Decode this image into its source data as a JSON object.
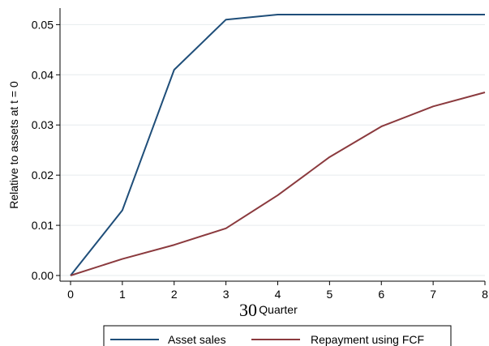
{
  "page_number": "30",
  "chart_data": {
    "type": "line",
    "xlabel": "Quarter",
    "ylabel": "Relative to assets at t = 0",
    "x": [
      0,
      1,
      2,
      3,
      4,
      5,
      6,
      7,
      8
    ],
    "xlim": [
      0,
      8
    ],
    "ylim": [
      0,
      0.052
    ],
    "x_ticks": [
      "0",
      "1",
      "2",
      "3",
      "4",
      "5",
      "6",
      "7",
      "8"
    ],
    "y_ticks": [
      {
        "value": 0.0,
        "label": "0.00"
      },
      {
        "value": 0.01,
        "label": "0.01"
      },
      {
        "value": 0.02,
        "label": "0.02"
      },
      {
        "value": 0.03,
        "label": "0.03"
      },
      {
        "value": 0.04,
        "label": "0.04"
      },
      {
        "value": 0.05,
        "label": "0.05"
      }
    ],
    "grid": "horizontal",
    "legend_position": "bottom",
    "series": [
      {
        "name": "Asset sales",
        "color": "#1f4e79",
        "values": [
          0.0,
          0.013,
          0.041,
          0.051,
          0.052,
          0.052,
          0.052,
          0.052,
          0.052
        ]
      },
      {
        "name": "Repayment using FCF",
        "color": "#8b3a3e",
        "values": [
          0.0,
          0.0033,
          0.0061,
          0.0094,
          0.016,
          0.0236,
          0.0297,
          0.0337,
          0.0365
        ]
      }
    ]
  }
}
